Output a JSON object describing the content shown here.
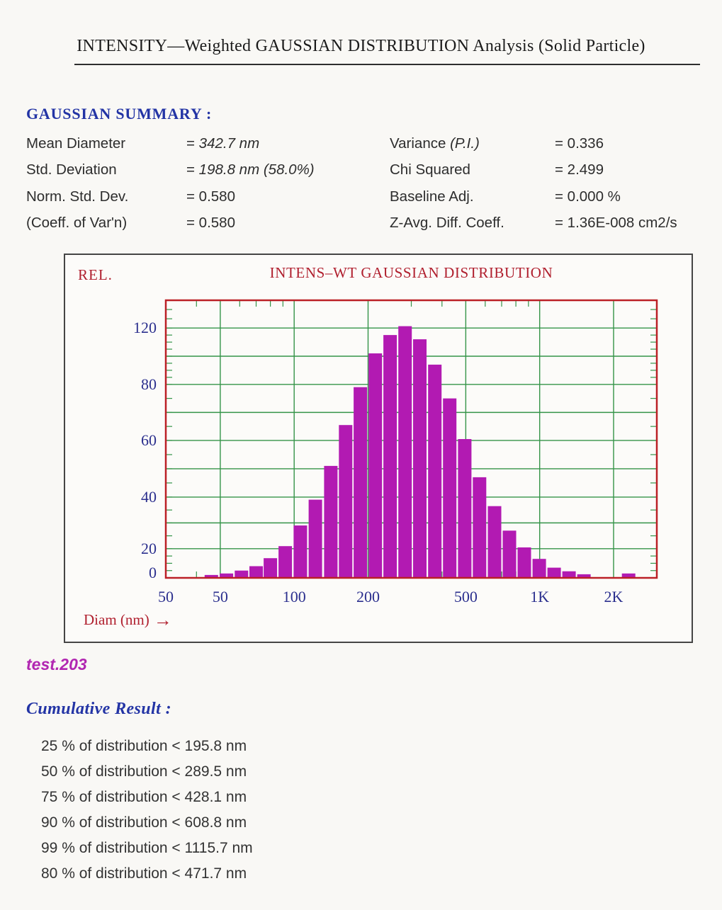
{
  "page": {
    "title": "INTENSITY—Weighted GAUSSIAN DISTRIBUTION Analysis (Solid Particle)"
  },
  "summary": {
    "heading": "GAUSSIAN SUMMARY :",
    "equals_sign": "=",
    "left_rows": [
      {
        "label": "Mean Diameter",
        "value": "342.7 nm",
        "value_italic": true
      },
      {
        "label": "Std. Deviation",
        "value": "198.8 nm (58.0%)",
        "value_italic": true
      },
      {
        "label": "Norm. Std. Dev.",
        "value": "0.580",
        "value_italic": false
      },
      {
        "label": "(Coeff. of Var'n)",
        "value": "0.580",
        "value_italic": false
      }
    ],
    "right_rows": [
      {
        "label": "Variance",
        "label_italic": "(P.I.)",
        "value": "0.336"
      },
      {
        "label": "Chi Squared",
        "label_italic": "",
        "value": "2.499"
      },
      {
        "label": "Baseline Adj.",
        "label_italic": "",
        "value": "0.000 %"
      },
      {
        "label": "Z-Avg. Diff. Coeff.",
        "label_italic": "",
        "value": "1.36E-008 cm2/s"
      }
    ]
  },
  "chart_data": {
    "type": "bar",
    "title": "INTENS–WT GAUSSIAN DISTRIBUTION",
    "y_axis_label": "REL.",
    "x_axis_label": "Diam (nm)",
    "x_axis_arrow": "→",
    "x_scale": "log",
    "x_range": [
      30,
      3000
    ],
    "x_edge_label": "50",
    "x_major_ticks": [
      {
        "value": 50,
        "label": "50"
      },
      {
        "value": 100,
        "label": "100"
      },
      {
        "value": 200,
        "label": "200"
      },
      {
        "value": 500,
        "label": "500"
      },
      {
        "value": 1000,
        "label": "1K"
      },
      {
        "value": 2000,
        "label": "2K"
      }
    ],
    "x_minor_ticks": [
      40,
      60,
      70,
      80,
      90,
      300,
      400,
      600,
      700,
      800,
      900
    ],
    "y_range": [
      0,
      135
    ],
    "y_ticks": [
      {
        "value": 0,
        "label": "0"
      },
      {
        "value": 20,
        "label": "20"
      },
      {
        "value": 40,
        "label": "40"
      },
      {
        "value": 60,
        "label": "60"
      },
      {
        "value": 80,
        "label": "80"
      },
      {
        "value": 120,
        "label": "120"
      }
    ],
    "y_gridline_values": [
      20,
      30,
      40,
      50,
      60,
      70,
      80,
      100,
      120
    ],
    "y_minor_tick_step": 5,
    "y_map": [
      [
        0,
        0
      ],
      [
        20,
        0.105
      ],
      [
        40,
        0.291
      ],
      [
        60,
        0.495
      ],
      [
        80,
        0.697
      ],
      [
        120,
        0.9
      ],
      [
        135,
        1.0
      ]
    ],
    "grid": true,
    "legend": "none",
    "bins": {
      "ratio": 1.15,
      "centers": [
        46,
        53,
        61,
        70,
        80,
        92,
        106,
        122,
        141,
        162,
        186,
        214,
        246,
        283,
        325,
        374,
        430,
        495,
        569,
        655,
        753,
        866,
        996,
        1145,
        1317,
        1514,
        1741,
        2003,
        2303
      ],
      "values": [
        2,
        3,
        5,
        8,
        13.5,
        21,
        29,
        39,
        51,
        65.5,
        79,
        102,
        115,
        121,
        112,
        94,
        75,
        60.5,
        47,
        36.5,
        27,
        20.5,
        13,
        7,
        4.5,
        2.5,
        0,
        0,
        3
      ]
    },
    "colors": {
      "bar": "#b21ab2",
      "grid": "#359449",
      "plot_border": "#bb2026",
      "axis_text": "#2b2f8e",
      "chart_red": "#b01f2e"
    }
  },
  "file_label": "test.203",
  "cumulative": {
    "heading": "Cumulative Result :",
    "rows": [
      {
        "text": "25 % of distribution < 195.8 nm",
        "percent": 25,
        "diameter_nm": 195.8
      },
      {
        "text": "50 % of distribution < 289.5 nm",
        "percent": 50,
        "diameter_nm": 289.5
      },
      {
        "text": "75 % of distribution < 428.1 nm",
        "percent": 75,
        "diameter_nm": 428.1
      },
      {
        "text": "90 % of distribution < 608.8 nm",
        "percent": 90,
        "diameter_nm": 608.8
      },
      {
        "text": "99 % of distribution < 1115.7 nm",
        "percent": 99,
        "diameter_nm": 1115.7
      },
      {
        "text": "80 % of distribution < 471.7 nm",
        "percent": 80,
        "diameter_nm": 471.7
      }
    ]
  }
}
